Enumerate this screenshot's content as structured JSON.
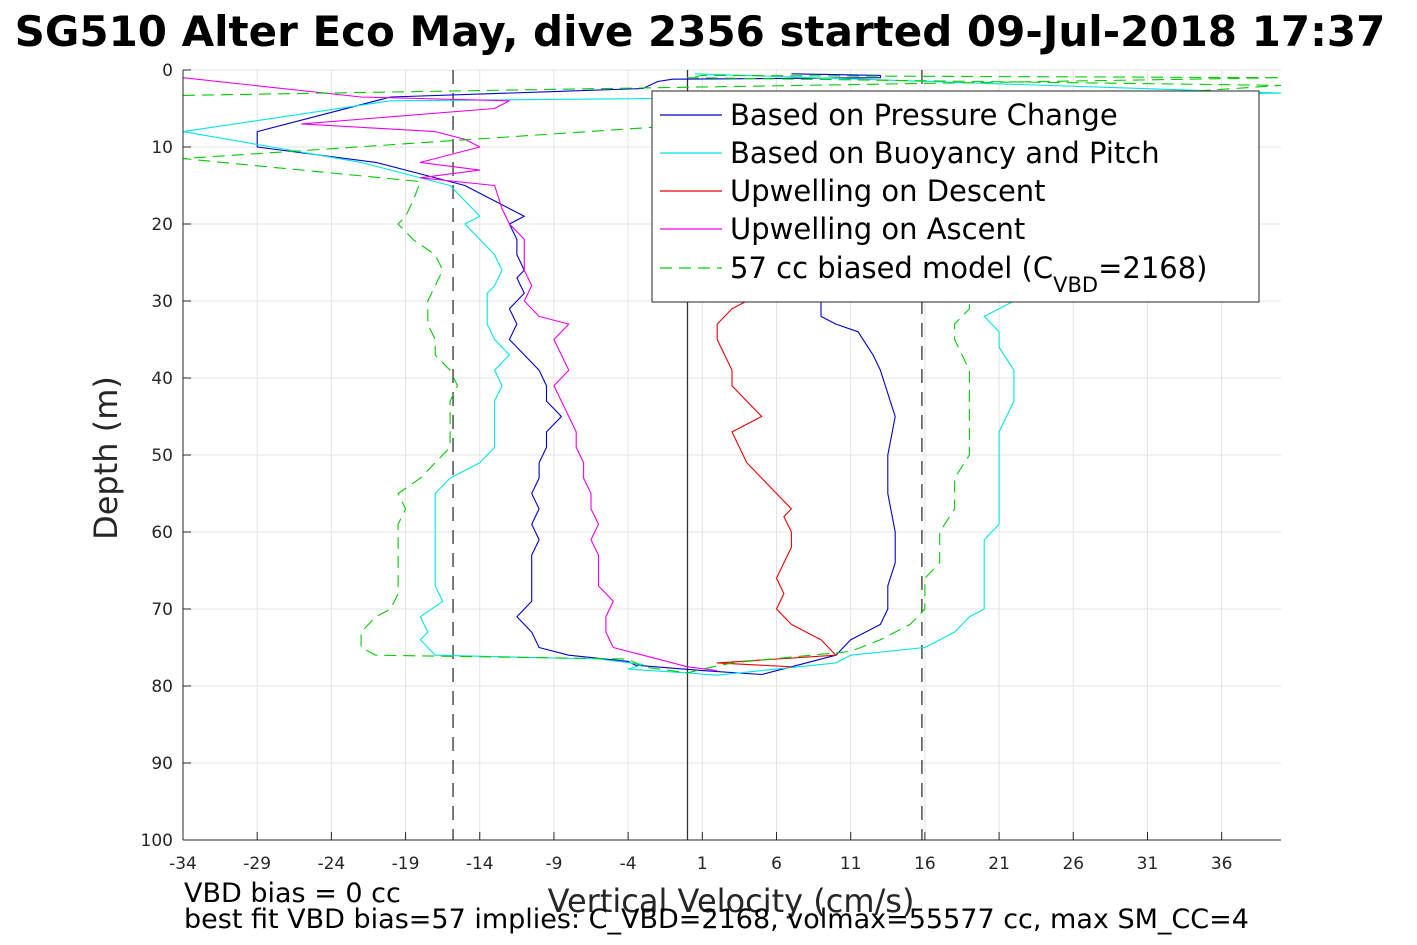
{
  "chart_data": {
    "type": "line",
    "title": "SG510 Alter Eco May, dive 2356 started 09-Jul-2018 17:37",
    "xlabel": "Vertical Velocity (cm/s)",
    "ylabel": "Depth (m)",
    "xlim": [
      -34,
      40
    ],
    "ylim": [
      0,
      100
    ],
    "y_reversed": true,
    "grid": true,
    "legend_position": "top-right",
    "x_ticks": [
      "-34",
      "-29",
      "-24",
      "-19",
      "-14",
      "-9",
      "-4",
      "1",
      "6",
      "11",
      "16",
      "21",
      "26",
      "31",
      "36"
    ],
    "y_ticks": [
      "0",
      "10",
      "20",
      "30",
      "40",
      "50",
      "60",
      "70",
      "80",
      "90",
      "100"
    ],
    "reference_lines": {
      "zero_x": 0,
      "dashed_x": [
        -15.8,
        15.8
      ]
    },
    "series": [
      {
        "name": "Based on Pressure Change",
        "color": "#0000cc",
        "style": "solid",
        "points": [
          [
            7,
            0.5
          ],
          [
            13,
            0.7
          ],
          [
            13,
            1
          ],
          [
            -1,
            1.2
          ],
          [
            -2,
            1.5
          ],
          [
            -3,
            2.4
          ],
          [
            -9,
            2.8
          ],
          [
            -20,
            3.5
          ],
          [
            -29,
            8
          ],
          [
            -29,
            10
          ],
          [
            -21,
            12
          ],
          [
            -16,
            14.5
          ],
          [
            -15,
            15
          ],
          [
            -14,
            16
          ],
          [
            -12,
            18
          ],
          [
            -11,
            19
          ],
          [
            -12,
            20
          ],
          [
            -11.5,
            22
          ],
          [
            -11.5,
            24
          ],
          [
            -11,
            26
          ],
          [
            -11.5,
            27
          ],
          [
            -11,
            29
          ],
          [
            -12,
            31
          ],
          [
            -11.5,
            33
          ],
          [
            -12,
            35
          ],
          [
            -11,
            37
          ],
          [
            -10,
            39
          ],
          [
            -9.5,
            41
          ],
          [
            -9.5,
            43
          ],
          [
            -8.5,
            45
          ],
          [
            -9.5,
            47
          ],
          [
            -9.5,
            49
          ],
          [
            -10,
            51
          ],
          [
            -10,
            53
          ],
          [
            -10.5,
            55
          ],
          [
            -10,
            57
          ],
          [
            -10.5,
            59
          ],
          [
            -10,
            61
          ],
          [
            -10.5,
            63
          ],
          [
            -10.5,
            65
          ],
          [
            -10.5,
            67
          ],
          [
            -10.5,
            69
          ],
          [
            -11.5,
            71
          ],
          [
            -10.5,
            73
          ],
          [
            -10,
            75
          ],
          [
            -8,
            76
          ],
          [
            -4,
            76.8
          ],
          [
            -3.5,
            77.3
          ],
          [
            1,
            78
          ],
          [
            5,
            78.5
          ],
          [
            7,
            77.5
          ],
          [
            10,
            76
          ],
          [
            11,
            74
          ],
          [
            13,
            72
          ],
          [
            13.5,
            70
          ],
          [
            13.5,
            67
          ],
          [
            14,
            64
          ],
          [
            14,
            60
          ],
          [
            13.5,
            55
          ],
          [
            13.5,
            50
          ],
          [
            14,
            45
          ],
          [
            13.5,
            42
          ],
          [
            13,
            39
          ],
          [
            12.5,
            37
          ],
          [
            11.5,
            34
          ],
          [
            10,
            33
          ],
          [
            9,
            32
          ],
          [
            9,
            30
          ]
        ]
      },
      {
        "name": "Based on Buoyancy and Pitch",
        "color": "#00e5e5",
        "style": "solid",
        "points": [
          [
            0.5,
            0.5
          ],
          [
            40,
            3
          ],
          [
            -20,
            4
          ],
          [
            -34,
            8
          ],
          [
            -28,
            10
          ],
          [
            -22,
            12
          ],
          [
            -16,
            15
          ],
          [
            -15,
            17
          ],
          [
            -14,
            19
          ],
          [
            -15,
            20
          ],
          [
            -14,
            22
          ],
          [
            -13,
            24
          ],
          [
            -12.5,
            26
          ],
          [
            -13,
            28
          ],
          [
            -13.5,
            29
          ],
          [
            -13.5,
            31
          ],
          [
            -13.5,
            33
          ],
          [
            -13,
            35
          ],
          [
            -12,
            37
          ],
          [
            -13,
            39
          ],
          [
            -12.5,
            41
          ],
          [
            -13,
            43
          ],
          [
            -13,
            45
          ],
          [
            -13,
            47
          ],
          [
            -13,
            49
          ],
          [
            -14,
            51
          ],
          [
            -16,
            53
          ],
          [
            -17,
            55
          ],
          [
            -17,
            58
          ],
          [
            -17,
            61
          ],
          [
            -17,
            64
          ],
          [
            -17,
            67
          ],
          [
            -16.5,
            69
          ],
          [
            -18,
            71
          ],
          [
            -17.5,
            73
          ],
          [
            -18,
            74
          ],
          [
            -17,
            76
          ],
          [
            -6,
            76.5
          ],
          [
            -3,
            77.2
          ],
          [
            -4,
            77.8
          ],
          [
            0,
            78.3
          ],
          [
            2,
            78.6
          ],
          [
            10,
            77
          ],
          [
            11,
            76
          ],
          [
            16,
            75
          ],
          [
            18,
            73
          ],
          [
            19,
            71
          ],
          [
            20,
            70
          ],
          [
            20,
            67
          ],
          [
            20,
            64
          ],
          [
            20,
            61
          ],
          [
            21,
            59
          ],
          [
            21,
            55
          ],
          [
            21,
            51
          ],
          [
            21,
            47
          ],
          [
            22,
            43
          ],
          [
            22,
            39
          ],
          [
            21,
            36
          ],
          [
            21,
            34
          ],
          [
            20,
            32
          ],
          [
            21,
            31
          ],
          [
            22,
            30
          ]
        ]
      },
      {
        "name": "Upwelling on Descent",
        "color": "#ee0000",
        "style": "solid",
        "points": [
          [
            7,
            77.5
          ],
          [
            2,
            77
          ],
          [
            10,
            76
          ],
          [
            9,
            74
          ],
          [
            7,
            72
          ],
          [
            6,
            70
          ],
          [
            6.5,
            68
          ],
          [
            6,
            66
          ],
          [
            6.5,
            64
          ],
          [
            7,
            62
          ],
          [
            7,
            60
          ],
          [
            6.5,
            58
          ],
          [
            7,
            57
          ],
          [
            6,
            55
          ],
          [
            5,
            53
          ],
          [
            4,
            51
          ],
          [
            3.5,
            49
          ],
          [
            3,
            47
          ],
          [
            5,
            45
          ],
          [
            4,
            43
          ],
          [
            3,
            41
          ],
          [
            3,
            39
          ],
          [
            2.5,
            37
          ],
          [
            2,
            35
          ],
          [
            2,
            33
          ],
          [
            3,
            31
          ],
          [
            4,
            30
          ]
        ]
      },
      {
        "name": "Upwelling on Ascent",
        "color": "#ee00ee",
        "style": "solid",
        "points": [
          [
            -34,
            1
          ],
          [
            -22,
            3.5
          ],
          [
            -12,
            4
          ],
          [
            -13,
            5
          ],
          [
            -26,
            7
          ],
          [
            -17,
            8
          ],
          [
            -15,
            9
          ],
          [
            -14,
            10
          ],
          [
            -18,
            12
          ],
          [
            -14,
            13
          ],
          [
            -18,
            14
          ],
          [
            -13,
            15
          ],
          [
            -12.5,
            18
          ],
          [
            -12,
            20
          ],
          [
            -11,
            22
          ],
          [
            -11,
            24
          ],
          [
            -11,
            26
          ],
          [
            -10.5,
            28
          ],
          [
            -11,
            30
          ],
          [
            -10,
            32
          ],
          [
            -8,
            33
          ],
          [
            -9,
            35
          ],
          [
            -8.5,
            37
          ],
          [
            -8,
            39
          ],
          [
            -9,
            41
          ],
          [
            -8.5,
            43
          ],
          [
            -8,
            45
          ],
          [
            -7.5,
            47
          ],
          [
            -7.5,
            49
          ],
          [
            -7,
            51
          ],
          [
            -7,
            53
          ],
          [
            -6.5,
            55
          ],
          [
            -6.5,
            57
          ],
          [
            -6,
            59
          ],
          [
            -6.5,
            61
          ],
          [
            -6,
            63
          ],
          [
            -6,
            65
          ],
          [
            -6,
            67
          ],
          [
            -5,
            69
          ],
          [
            -5.5,
            71
          ],
          [
            -5.5,
            73
          ],
          [
            -5,
            75
          ],
          [
            -3,
            76
          ],
          [
            0,
            77.5
          ],
          [
            2,
            78
          ]
        ]
      },
      {
        "name": "57 cc biased model (C<sub>VBD</sub>=2168)",
        "color": "#00cc00",
        "style": "dashed",
        "points": [
          [
            -34,
            3.3
          ],
          [
            -15,
            2.7
          ],
          [
            40,
            1
          ],
          [
            1,
            0.7
          ],
          [
            0,
            1
          ],
          [
            40,
            2
          ],
          [
            -34,
            11.5
          ],
          [
            -18,
            14.5
          ],
          [
            -18.5,
            17
          ],
          [
            -19,
            19
          ],
          [
            -19.5,
            20
          ],
          [
            -18.5,
            22
          ],
          [
            -17,
            24
          ],
          [
            -16.5,
            26
          ],
          [
            -17,
            28
          ],
          [
            -17.5,
            30
          ],
          [
            -17.5,
            33
          ],
          [
            -17,
            35
          ],
          [
            -17,
            37
          ],
          [
            -16,
            39
          ],
          [
            -15.5,
            41
          ],
          [
            -16,
            43
          ],
          [
            -16,
            45
          ],
          [
            -16,
            47
          ],
          [
            -16,
            49
          ],
          [
            -17,
            51
          ],
          [
            -18,
            53
          ],
          [
            -19.5,
            55
          ],
          [
            -19,
            57
          ],
          [
            -19.5,
            59
          ],
          [
            -19.5,
            61
          ],
          [
            -19.5,
            64
          ],
          [
            -19.5,
            66
          ],
          [
            -19.5,
            68
          ],
          [
            -20,
            70
          ],
          [
            -21,
            71
          ],
          [
            -22,
            73
          ],
          [
            -22,
            75
          ],
          [
            -21,
            76
          ],
          [
            -4,
            76.5
          ],
          [
            -3,
            77.5
          ],
          [
            0,
            78.3
          ],
          [
            1,
            77.8
          ],
          [
            3,
            77
          ],
          [
            4,
            76.8
          ],
          [
            11,
            75.5
          ],
          [
            13,
            74
          ],
          [
            15,
            72
          ],
          [
            16,
            70
          ],
          [
            16,
            68
          ],
          [
            16,
            66
          ],
          [
            17,
            64
          ],
          [
            17,
            62
          ],
          [
            17,
            60
          ],
          [
            18,
            57
          ],
          [
            18,
            55
          ],
          [
            18,
            53
          ],
          [
            19,
            50
          ],
          [
            19,
            47
          ],
          [
            19,
            44
          ],
          [
            19,
            41
          ],
          [
            19,
            39
          ],
          [
            18.5,
            37
          ],
          [
            18,
            35
          ],
          [
            18,
            33
          ],
          [
            19,
            31
          ],
          [
            19,
            30
          ]
        ]
      }
    ]
  },
  "legend_items": [
    {
      "label": "Based on Pressure Change",
      "color": "#0000cc",
      "dash": false
    },
    {
      "label": "Based on Buoyancy and Pitch",
      "color": "#00e5e5",
      "dash": false
    },
    {
      "label": "Upwelling on Descent",
      "color": "#ee0000",
      "dash": false
    },
    {
      "label": "Upwelling on Ascent",
      "color": "#ee00ee",
      "dash": false
    }
  ],
  "legend_model": {
    "label_prefix": "57 cc biased model (C",
    "label_sub": "VBD",
    "label_suffix": "=2168)",
    "color": "#00cc00"
  },
  "footer": {
    "line1": "VBD bias = 0 cc",
    "line2": "best fit VBD bias=57 implies: C_VBD=2168, volmax=55577 cc, max SM_CC=4"
  }
}
